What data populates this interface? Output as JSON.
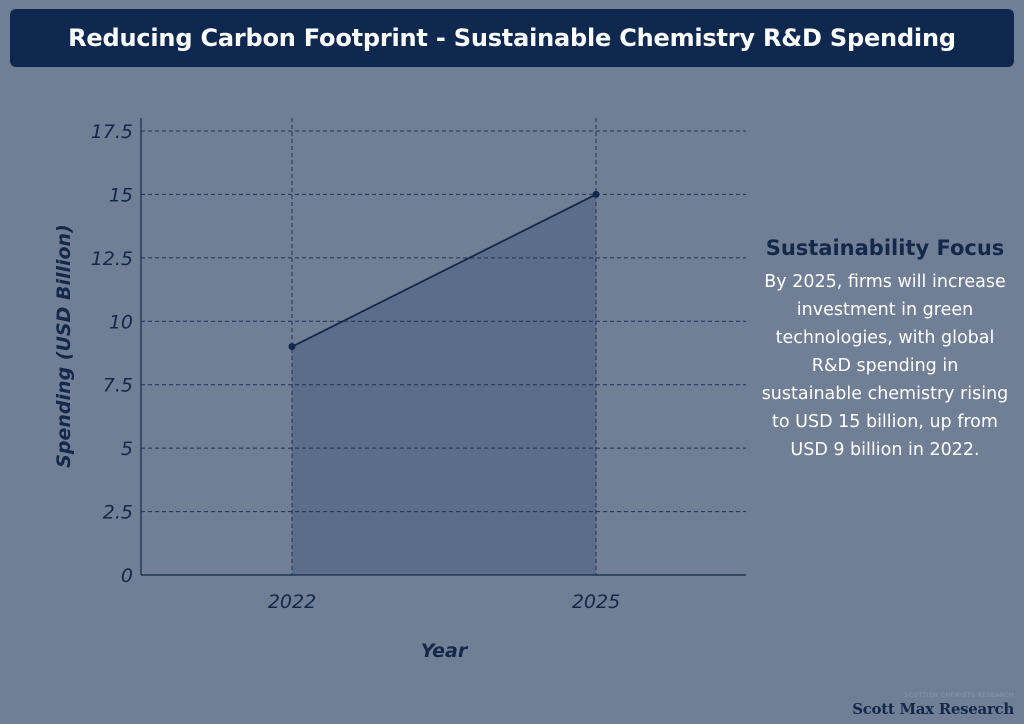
{
  "header": {
    "title": "Reducing Carbon Footprint - Sustainable Chemistry R&D Spending"
  },
  "chart_data": {
    "type": "area",
    "title": "Reducing Carbon Footprint - Sustainable Chemistry R&D Spending",
    "xlabel": "Year",
    "ylabel": "Spending (USD Billion)",
    "categories": [
      "2022",
      "2025"
    ],
    "values": [
      9,
      15
    ],
    "ylim": [
      0,
      17.5
    ],
    "yticks": [
      "0",
      "2.5",
      "5",
      "7.5",
      "10",
      "12.5",
      "15",
      "17.5"
    ],
    "grid": true,
    "colors": {
      "line": "#14284b",
      "fill": "#5a6c89",
      "grid": "#1e3254"
    }
  },
  "side_panel": {
    "heading": "Sustainability Focus",
    "text": "By 2025, firms will increase investment in green technologies, with global R&D spending in sustainable chemistry rising to USD 15 billion, up from USD 9 billion in 2022."
  },
  "credit": {
    "small": "SCOTTISH CHEMISTS RESEARCH",
    "brand": "Scott Max Research"
  }
}
